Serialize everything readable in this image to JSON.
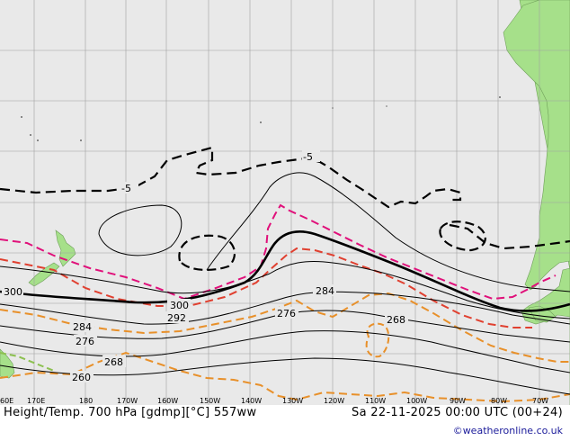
{
  "map": {
    "contour_labels": {
      "height_300_left": "300",
      "height_300_mid": "300",
      "height_292": "292",
      "height_284_left": "284",
      "height_284_right": "284",
      "height_276_left": "276",
      "height_276_mid": "276",
      "height_268_left": "268",
      "height_268_right": "268",
      "height_260": "260",
      "temp_minus5_left": "-5",
      "temp_minus5_top": "-5"
    },
    "longitude_labels": [
      "170E",
      "180",
      "170W",
      "160W",
      "150W",
      "140W",
      "130W",
      "120W",
      "110W",
      "100W",
      "90W",
      "80W",
      "70W"
    ],
    "left_edge_label": "60E",
    "colors": {
      "ocean": "#e9e9e9",
      "land": "#a6e08a",
      "grid": "#a0a0a0",
      "height_contour": "#000000",
      "temp_warm": "#e04030",
      "temp_orange": "#e8902a",
      "temp_magenta": "#e0107a",
      "temp_cold": "#000000",
      "land_border": "#8a8a8a"
    }
  },
  "footer": {
    "title": "Height/Temp. 700 hPa [gdmp][°C] 557ww",
    "datetime": "Sa 22-11-2025 00:00 UTC (00+24)",
    "credit": "©weatheronline.co.uk"
  }
}
